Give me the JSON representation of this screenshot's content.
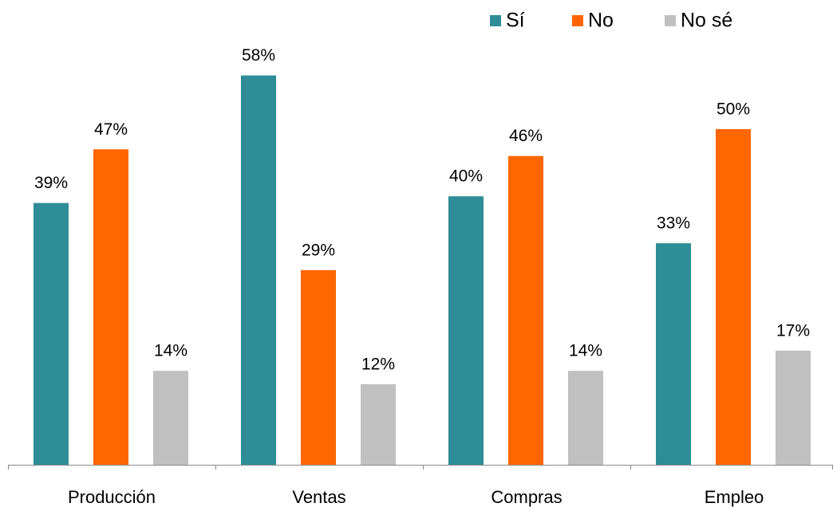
{
  "chart_data": {
    "type": "bar",
    "categories": [
      "Producción",
      "Ventas",
      "Compras",
      "Empleo"
    ],
    "series": [
      {
        "name": "Sí",
        "color": "#2e8d97",
        "values": [
          39,
          58,
          40,
          33
        ],
        "value_labels": [
          "39%",
          "58%",
          "40%",
          "33%"
        ]
      },
      {
        "name": "No",
        "color": "#ff6600",
        "values": [
          47,
          29,
          46,
          50
        ],
        "value_labels": [
          "47%",
          "29%",
          "46%",
          "50%"
        ]
      },
      {
        "name": "No sé",
        "color": "#c0c0c0",
        "values": [
          14,
          12,
          14,
          17
        ],
        "value_labels": [
          "14%",
          "12%",
          "14%",
          "17%"
        ]
      }
    ],
    "legend": "top-right"
  }
}
